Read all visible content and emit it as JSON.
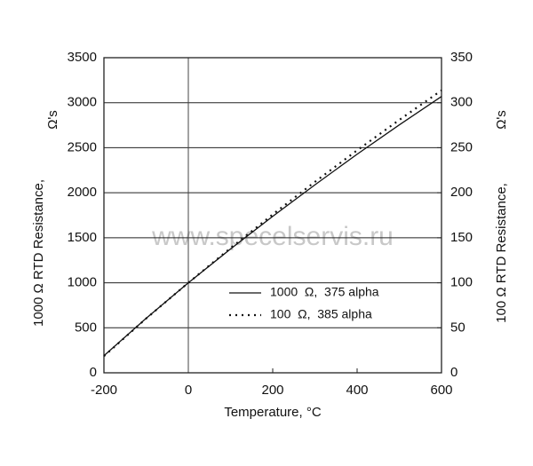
{
  "chart_data": {
    "type": "line",
    "xlabel": "Temperature, °C",
    "ylabel": "1000 Ω  RTD Resistance,",
    "ylabel_unit": "Ω's",
    "y2label": "100 Ω  RTD Resistance,",
    "y2label_unit": "Ω's",
    "watermark": "www.specelservis.ru",
    "x": [
      -200,
      -100,
      0,
      100,
      200,
      300,
      400,
      500,
      600
    ],
    "series": [
      {
        "name": "1000  Ω,  375 alpha",
        "color": "#111111",
        "style": "solid",
        "values": [
          190,
          605,
          1000,
          1375,
          1738,
          2088,
          2428,
          2754,
          3069
        ]
      },
      {
        "name": "100  Ω,  385 alpha",
        "color": "#111111",
        "style": "dotted",
        "axis": "y2",
        "values": [
          18.5,
          60.3,
          100,
          138.5,
          175.9,
          212.1,
          247.1,
          280.9,
          313.7
        ]
      }
    ],
    "xlim": [
      -200,
      600
    ],
    "xticks": [
      -200,
      0,
      200,
      400,
      600
    ],
    "ylim": [
      0,
      3500
    ],
    "yticks": [
      0,
      500,
      1000,
      1500,
      2000,
      2500,
      3000,
      3500
    ],
    "y2lim": [
      0,
      350
    ],
    "y2ticks": [
      0,
      50,
      100,
      150,
      200,
      250,
      300,
      350
    ],
    "grid": true,
    "vline": 0,
    "legend": "lower right"
  }
}
